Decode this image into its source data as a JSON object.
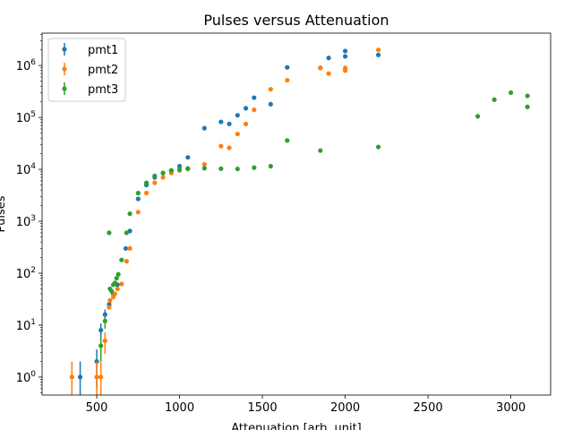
{
  "chart_data": {
    "type": "scatter",
    "title": "Pulses versus Attenuation",
    "xlabel": "Attenuation [arb. unit]",
    "ylabel": "Pulses",
    "xlim": [
      170,
      3240
    ],
    "ylim": [
      0.45,
      4200000
    ],
    "yscale": "log",
    "grid": false,
    "legend_position": "top-left",
    "x_ticks": [
      500,
      1000,
      1500,
      2000,
      2500,
      3000
    ],
    "x_tick_labels": [
      "500",
      "1000",
      "1500",
      "2000",
      "2500",
      "3000"
    ],
    "y_ticks": [
      1,
      10,
      100,
      1000,
      10000,
      100000,
      1000000
    ],
    "y_tick_labels": [
      {
        "base": "10",
        "exp": "0"
      },
      {
        "base": "10",
        "exp": "1"
      },
      {
        "base": "10",
        "exp": "2"
      },
      {
        "base": "10",
        "exp": "3"
      },
      {
        "base": "10",
        "exp": "4"
      },
      {
        "base": "10",
        "exp": "5"
      },
      {
        "base": "10",
        "exp": "6"
      }
    ],
    "series": [
      {
        "name": "pmt1",
        "color": "#1f77b4",
        "points": [
          {
            "x": 400,
            "y": 1,
            "lo": 0.3,
            "hi": 2
          },
          {
            "x": 500,
            "y": 2,
            "lo": 0.6,
            "hi": 3.4
          },
          {
            "x": 525,
            "y": 8,
            "lo": 5.2,
            "hi": 10.8
          },
          {
            "x": 550,
            "y": 16,
            "lo": 12,
            "hi": 20
          },
          {
            "x": 575,
            "y": 25,
            "lo": 20,
            "hi": 30
          },
          {
            "x": 600,
            "y": 40
          },
          {
            "x": 625,
            "y": 60
          },
          {
            "x": 675,
            "y": 300
          },
          {
            "x": 700,
            "y": 650
          },
          {
            "x": 750,
            "y": 2700
          },
          {
            "x": 800,
            "y": 5000
          },
          {
            "x": 850,
            "y": 7000
          },
          {
            "x": 900,
            "y": 8500
          },
          {
            "x": 950,
            "y": 9500
          },
          {
            "x": 1000,
            "y": 11500
          },
          {
            "x": 1050,
            "y": 17000
          },
          {
            "x": 1150,
            "y": 62000
          },
          {
            "x": 1250,
            "y": 82000
          },
          {
            "x": 1300,
            "y": 75000
          },
          {
            "x": 1350,
            "y": 110000
          },
          {
            "x": 1400,
            "y": 150000
          },
          {
            "x": 1450,
            "y": 240000
          },
          {
            "x": 1550,
            "y": 180000
          },
          {
            "x": 1650,
            "y": 920000
          },
          {
            "x": 1850,
            "y": 900000
          },
          {
            "x": 1900,
            "y": 1400000
          },
          {
            "x": 2000,
            "y": 1500000
          },
          {
            "x": 2000,
            "y": 1900000
          },
          {
            "x": 2200,
            "y": 1600000
          }
        ]
      },
      {
        "name": "pmt2",
        "color": "#ff7f0e",
        "points": [
          {
            "x": 350,
            "y": 1,
            "lo": 0.3,
            "hi": 2
          },
          {
            "x": 500,
            "y": 1,
            "lo": 0.3,
            "hi": 2
          },
          {
            "x": 525,
            "y": 1,
            "lo": 0.3,
            "hi": 2
          },
          {
            "x": 550,
            "y": 5,
            "lo": 2.8,
            "hi": 7.2
          },
          {
            "x": 575,
            "y": 22
          },
          {
            "x": 580,
            "y": 30
          },
          {
            "x": 600,
            "y": 35
          },
          {
            "x": 610,
            "y": 40
          },
          {
            "x": 625,
            "y": 50
          },
          {
            "x": 650,
            "y": 62
          },
          {
            "x": 680,
            "y": 170
          },
          {
            "x": 700,
            "y": 300
          },
          {
            "x": 750,
            "y": 1500
          },
          {
            "x": 800,
            "y": 3500
          },
          {
            "x": 850,
            "y": 5500
          },
          {
            "x": 900,
            "y": 7000
          },
          {
            "x": 950,
            "y": 8500
          },
          {
            "x": 1000,
            "y": 9500
          },
          {
            "x": 1050,
            "y": 10500
          },
          {
            "x": 1150,
            "y": 12500
          },
          {
            "x": 1250,
            "y": 28000
          },
          {
            "x": 1300,
            "y": 26000
          },
          {
            "x": 1350,
            "y": 48000
          },
          {
            "x": 1400,
            "y": 75000
          },
          {
            "x": 1450,
            "y": 140000
          },
          {
            "x": 1550,
            "y": 350000
          },
          {
            "x": 1650,
            "y": 520000
          },
          {
            "x": 1850,
            "y": 900000
          },
          {
            "x": 1900,
            "y": 700000
          },
          {
            "x": 2000,
            "y": 800000
          },
          {
            "x": 2000,
            "y": 900000
          },
          {
            "x": 2200,
            "y": 2000000
          }
        ]
      },
      {
        "name": "pmt3",
        "color": "#2ca02c",
        "points": [
          {
            "x": 525,
            "y": 4,
            "lo": 2,
            "hi": 6
          },
          {
            "x": 550,
            "y": 12,
            "lo": 8.5,
            "hi": 15.5
          },
          {
            "x": 575,
            "y": 600
          },
          {
            "x": 580,
            "y": 50
          },
          {
            "x": 590,
            "y": 45
          },
          {
            "x": 600,
            "y": 60
          },
          {
            "x": 610,
            "y": 65
          },
          {
            "x": 620,
            "y": 80
          },
          {
            "x": 630,
            "y": 95
          },
          {
            "x": 650,
            "y": 180
          },
          {
            "x": 680,
            "y": 600
          },
          {
            "x": 700,
            "y": 1400
          },
          {
            "x": 750,
            "y": 3500
          },
          {
            "x": 800,
            "y": 5500
          },
          {
            "x": 850,
            "y": 7500
          },
          {
            "x": 900,
            "y": 8500
          },
          {
            "x": 950,
            "y": 9500
          },
          {
            "x": 1000,
            "y": 10000
          },
          {
            "x": 1050,
            "y": 10200
          },
          {
            "x": 1150,
            "y": 10500
          },
          {
            "x": 1250,
            "y": 10300
          },
          {
            "x": 1350,
            "y": 10200
          },
          {
            "x": 1450,
            "y": 10800
          },
          {
            "x": 1550,
            "y": 11500
          },
          {
            "x": 1650,
            "y": 36000
          },
          {
            "x": 1850,
            "y": 23000
          },
          {
            "x": 2200,
            "y": 27000
          },
          {
            "x": 2800,
            "y": 105000
          },
          {
            "x": 2900,
            "y": 220000
          },
          {
            "x": 3000,
            "y": 300000
          },
          {
            "x": 3100,
            "y": 160000
          },
          {
            "x": 3100,
            "y": 260000
          }
        ]
      }
    ]
  }
}
